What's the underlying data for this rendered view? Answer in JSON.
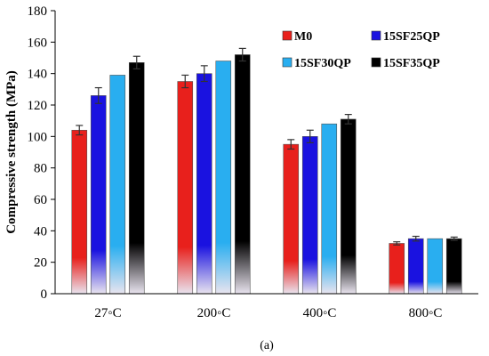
{
  "chart_data": {
    "type": "bar",
    "ylabel": "Compressive strength (MPa)",
    "xlabel": "",
    "caption": "(a)",
    "ylim": [
      0,
      180
    ],
    "yticks": [
      0,
      20,
      40,
      60,
      80,
      100,
      120,
      140,
      160,
      180
    ],
    "categories": [
      "27◦C",
      "200◦C",
      "400◦C",
      "800◦C"
    ],
    "legend_position": "top-right",
    "series": [
      {
        "name": "M0",
        "color": "#e8201c",
        "values": [
          104,
          135,
          95,
          32
        ],
        "errors": [
          3,
          4,
          3,
          1
        ]
      },
      {
        "name": "15SF25QP",
        "color": "#1a12e0",
        "values": [
          126,
          140,
          100,
          35
        ],
        "errors": [
          5,
          5,
          4,
          1.5
        ]
      },
      {
        "name": "15SF30QP",
        "color": "#29aef0",
        "values": [
          139,
          148,
          108,
          35
        ],
        "errors": [
          0,
          0,
          0,
          0
        ]
      },
      {
        "name": "15SF35QP",
        "color": "#000000",
        "values": [
          147,
          152,
          111,
          35
        ],
        "errors": [
          4,
          4,
          3,
          1
        ]
      }
    ]
  }
}
